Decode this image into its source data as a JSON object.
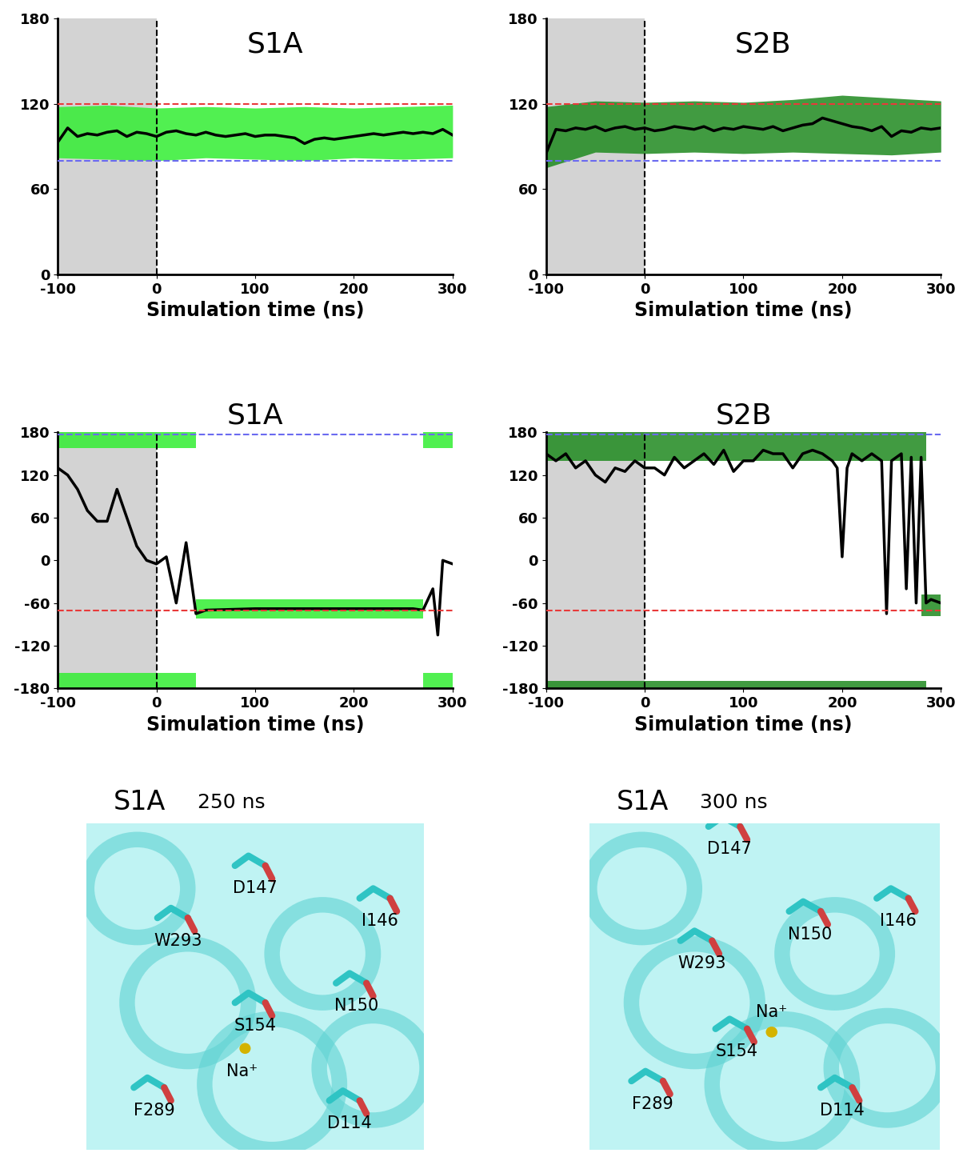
{
  "chart_data": [
    {
      "type": "scatter",
      "title": "S1A",
      "xlabel": "Simulation time (ns)",
      "xlim": [
        -100,
        300
      ],
      "xticks": [
        -100,
        0,
        100,
        200,
        300
      ],
      "ylim": [
        0,
        180
      ],
      "yticks": [
        0,
        60,
        120,
        180
      ],
      "series": [
        {
          "type": "span",
          "x": [
            -100,
            0
          ],
          "color": "#d3d3d3"
        },
        {
          "type": "band",
          "color": "#33ee33",
          "x": [
            -100,
            -50,
            0,
            50,
            100,
            150,
            200,
            250,
            300
          ],
          "low": [
            82,
            81,
            80,
            82,
            81,
            80,
            82,
            81,
            82
          ],
          "high": [
            118,
            119,
            117,
            118,
            117,
            118,
            117,
            118,
            119
          ]
        },
        {
          "type": "line",
          "color": "#000000",
          "x": [
            -100,
            -90,
            -80,
            -70,
            -60,
            -50,
            -40,
            -30,
            -20,
            -10,
            0,
            10,
            20,
            30,
            40,
            50,
            60,
            70,
            80,
            90,
            100,
            110,
            120,
            130,
            140,
            150,
            160,
            170,
            180,
            190,
            200,
            210,
            220,
            230,
            240,
            250,
            260,
            270,
            280,
            290,
            300
          ],
          "values": [
            93,
            103,
            97,
            99,
            98,
            100,
            101,
            97,
            100,
            99,
            97,
            100,
            101,
            99,
            98,
            100,
            98,
            97,
            98,
            99,
            97,
            98,
            98,
            97,
            96,
            92,
            95,
            96,
            95,
            96,
            97,
            98,
            99,
            98,
            99,
            100,
            99,
            100,
            99,
            102,
            98
          ]
        },
        {
          "type": "hline",
          "value": 120,
          "color": "#e83a3a",
          "line_style": "dashed"
        },
        {
          "type": "hline",
          "value": 80,
          "color": "#6a6af0",
          "line_style": "dashed"
        },
        {
          "type": "vline",
          "value": 0,
          "color": "#000000",
          "line_style": "dashed"
        }
      ]
    },
    {
      "type": "scatter",
      "title": "S2B",
      "xlabel": "Simulation time (ns)",
      "xlim": [
        -100,
        300
      ],
      "xticks": [
        -100,
        0,
        100,
        200,
        300
      ],
      "ylim": [
        0,
        180
      ],
      "yticks": [
        0,
        60,
        120,
        180
      ],
      "series": [
        {
          "type": "span",
          "x": [
            -100,
            0
          ],
          "color": "#d3d3d3"
        },
        {
          "type": "band",
          "color": "#1f8a1f",
          "x": [
            -100,
            -50,
            0,
            50,
            100,
            150,
            200,
            250,
            300
          ],
          "low": [
            75,
            86,
            85,
            86,
            85,
            86,
            85,
            84,
            86
          ],
          "high": [
            118,
            122,
            121,
            122,
            121,
            123,
            126,
            124,
            122
          ]
        },
        {
          "type": "line",
          "color": "#000000",
          "x": [
            -100,
            -90,
            -80,
            -70,
            -60,
            -50,
            -40,
            -30,
            -20,
            -10,
            0,
            10,
            20,
            30,
            40,
            50,
            60,
            70,
            80,
            90,
            100,
            110,
            120,
            130,
            140,
            150,
            160,
            170,
            180,
            190,
            200,
            210,
            220,
            230,
            240,
            250,
            260,
            270,
            280,
            290,
            300
          ],
          "values": [
            85,
            102,
            101,
            103,
            102,
            104,
            101,
            103,
            104,
            102,
            103,
            101,
            102,
            104,
            103,
            102,
            104,
            101,
            103,
            102,
            104,
            103,
            102,
            104,
            101,
            103,
            105,
            106,
            110,
            108,
            106,
            104,
            103,
            101,
            104,
            97,
            101,
            100,
            103,
            102,
            103
          ]
        },
        {
          "type": "hline",
          "value": 120,
          "color": "#e83a3a",
          "line_style": "dashed"
        },
        {
          "type": "hline",
          "value": 80,
          "color": "#6a6af0",
          "line_style": "dashed"
        },
        {
          "type": "vline",
          "value": 0,
          "color": "#000000",
          "line_style": "dashed"
        }
      ]
    },
    {
      "type": "scatter",
      "title": "S1A",
      "xlabel": "Simulation time (ns)",
      "xlim": [
        -100,
        300
      ],
      "xticks": [
        -100,
        0,
        100,
        200,
        300
      ],
      "ylim": [
        -180,
        180
      ],
      "yticks": [
        -180,
        -120,
        -60,
        0,
        60,
        120,
        180
      ],
      "series": [
        {
          "type": "span",
          "x": [
            -100,
            0
          ],
          "color": "#d3d3d3"
        },
        {
          "type": "band",
          "color": "#33ee33",
          "x": [
            -100,
            40
          ],
          "low": [
            158,
            158
          ],
          "high": [
            180,
            180
          ]
        },
        {
          "type": "band",
          "color": "#33ee33",
          "x": [
            -100,
            40
          ],
          "low": [
            -180,
            -180
          ],
          "high": [
            -158,
            -158
          ]
        },
        {
          "type": "band",
          "color": "#33ee33",
          "x": [
            40,
            270
          ],
          "low": [
            -82,
            -82
          ],
          "high": [
            -55,
            -55
          ]
        },
        {
          "type": "band",
          "color": "#33ee33",
          "x": [
            270,
            300
          ],
          "low": [
            158,
            158
          ],
          "high": [
            180,
            180
          ]
        },
        {
          "type": "band",
          "color": "#33ee33",
          "x": [
            270,
            300
          ],
          "low": [
            -180,
            -180
          ],
          "high": [
            -158,
            -158
          ]
        },
        {
          "type": "line",
          "color": "#000000",
          "x": [
            -100,
            -90,
            -80,
            -70,
            -60,
            -50,
            -40,
            -30,
            -20,
            -10,
            0,
            10,
            20,
            30,
            40,
            50,
            100,
            150,
            200,
            250,
            260,
            270,
            280,
            285,
            290,
            300
          ],
          "values": [
            130,
            120,
            100,
            70,
            55,
            55,
            100,
            60,
            20,
            0,
            -5,
            5,
            -60,
            25,
            -75,
            -70,
            -68,
            -68,
            -68,
            -68,
            -68,
            -70,
            -40,
            -105,
            0,
            -5
          ]
        },
        {
          "type": "hline",
          "value": -70,
          "color": "#e83a3a",
          "line_style": "dashed"
        },
        {
          "type": "hline",
          "value": 177,
          "color": "#6a6af0",
          "line_style": "dashed"
        },
        {
          "type": "vline",
          "value": 0,
          "color": "#000000",
          "line_style": "dashed"
        }
      ]
    },
    {
      "type": "scatter",
      "title": "S2B",
      "xlabel": "Simulation time (ns)",
      "xlim": [
        -100,
        300
      ],
      "xticks": [
        -100,
        0,
        100,
        200,
        300
      ],
      "ylim": [
        -180,
        180
      ],
      "yticks": [
        -180,
        -120,
        -60,
        0,
        60,
        120,
        180
      ],
      "series": [
        {
          "type": "span",
          "x": [
            -100,
            0
          ],
          "color": "#d3d3d3"
        },
        {
          "type": "band",
          "color": "#1f8a1f",
          "x": [
            -100,
            285
          ],
          "low": [
            140,
            140
          ],
          "high": [
            180,
            180
          ]
        },
        {
          "type": "band",
          "color": "#1f8a1f",
          "x": [
            -100,
            285
          ],
          "low": [
            -180,
            -180
          ],
          "high": [
            -170,
            -170
          ]
        },
        {
          "type": "band",
          "color": "#1f8a1f",
          "x": [
            280,
            300
          ],
          "low": [
            -78,
            -78
          ],
          "high": [
            -48,
            -48
          ]
        },
        {
          "type": "line",
          "color": "#000000",
          "x": [
            -100,
            -90,
            -80,
            -70,
            -60,
            -50,
            -40,
            -30,
            -20,
            -10,
            0,
            10,
            20,
            30,
            40,
            50,
            60,
            70,
            80,
            90,
            100,
            110,
            120,
            130,
            140,
            150,
            160,
            170,
            180,
            190,
            195,
            200,
            205,
            210,
            220,
            230,
            240,
            245,
            250,
            260,
            265,
            270,
            275,
            280,
            285,
            290,
            300
          ],
          "values": [
            150,
            140,
            150,
            130,
            140,
            120,
            110,
            130,
            125,
            140,
            130,
            130,
            120,
            145,
            130,
            140,
            150,
            135,
            155,
            125,
            140,
            140,
            155,
            150,
            150,
            130,
            150,
            155,
            150,
            140,
            130,
            5,
            130,
            150,
            140,
            150,
            140,
            -75,
            140,
            150,
            -40,
            145,
            -60,
            145,
            -60,
            -55,
            -60
          ]
        },
        {
          "type": "hline",
          "value": -70,
          "color": "#e83a3a",
          "line_style": "dashed"
        },
        {
          "type": "hline",
          "value": 177,
          "color": "#6a6af0",
          "line_style": "dashed"
        },
        {
          "type": "vline",
          "value": 0,
          "color": "#000000",
          "line_style": "dashed"
        }
      ]
    }
  ],
  "structures": [
    {
      "title": "S1A",
      "time": "250 ns",
      "labels": [
        "D147",
        "I146",
        "W293",
        "N150",
        "S154",
        "Na⁺",
        "F289",
        "D114"
      ]
    },
    {
      "title": "S1A",
      "time": "300 ns",
      "labels": [
        "D147",
        "I146",
        "N150",
        "W293",
        "Na⁺",
        "S154",
        "F289",
        "D114"
      ]
    }
  ]
}
